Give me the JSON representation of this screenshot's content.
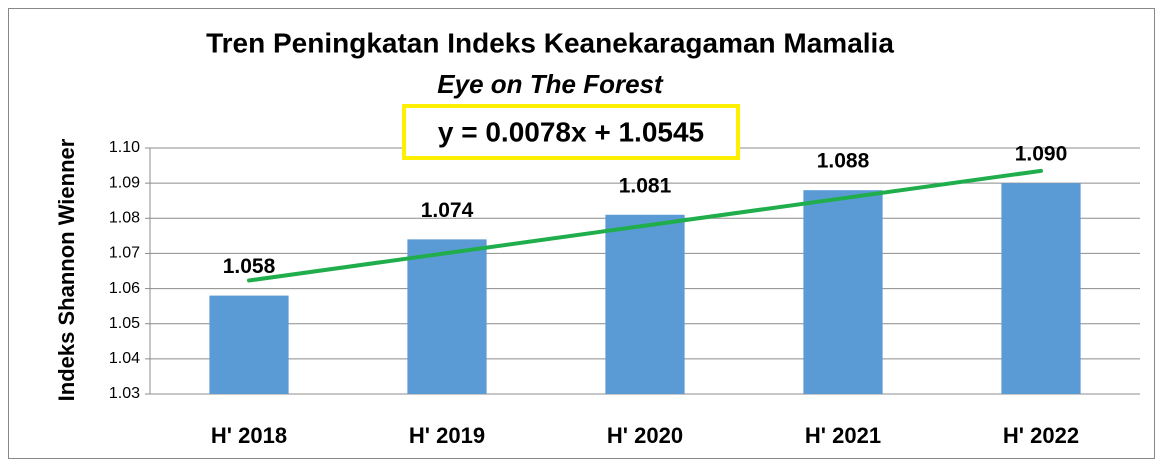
{
  "chart_data": {
    "type": "bar",
    "title": "Tren Peningkatan Indeks Keanekaragaman Mamalia",
    "subtitle": "Eye on The Forest",
    "y_label": "Indeks Shannon Wienner",
    "categories": [
      "H' 2018",
      "H' 2019",
      "H' 2020",
      "H' 2021",
      "H' 2022"
    ],
    "values": [
      1.058,
      1.074,
      1.081,
      1.088,
      1.09
    ],
    "value_labels": [
      "1.058",
      "1.074",
      "1.081",
      "1.088",
      "1.090"
    ],
    "color": "#5b9bd5",
    "ylim": [
      1.03,
      1.1
    ],
    "yticks": [
      1.03,
      1.04,
      1.05,
      1.06,
      1.07,
      1.08,
      1.09,
      {
        "value": 1.1,
        "label": "1.10"
      }
    ],
    "grid": true,
    "trendline": {
      "slope": 0.0078,
      "intercept": 1.0545,
      "label": "y = 0.0078x + 1.0545",
      "color": "#1fae4b"
    }
  }
}
